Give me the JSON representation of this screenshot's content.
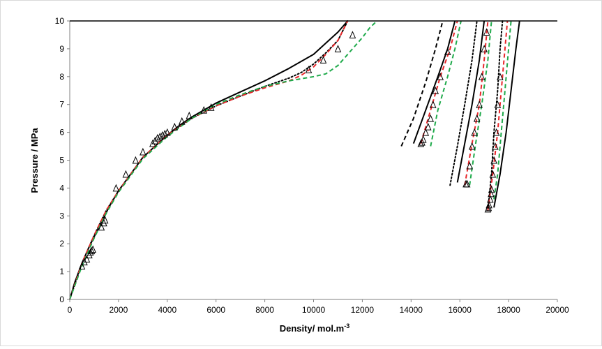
{
  "chart_data": {
    "type": "scatter",
    "title": "",
    "xlabel": "Density/ mol.m",
    "xlabel_sup": "-3",
    "ylabel": "Pressure / MPa",
    "xlim": [
      0,
      20000
    ],
    "ylim": [
      0,
      10
    ],
    "x_ticks": [
      0,
      2000,
      4000,
      6000,
      8000,
      10000,
      12000,
      14000,
      16000,
      18000,
      20000
    ],
    "y_ticks": [
      0,
      1,
      2,
      3,
      4,
      5,
      6,
      7,
      8,
      9,
      10
    ],
    "grid": false,
    "legend": "none",
    "colors": {
      "black": "#000000",
      "red": "#e8262a",
      "green": "#1faa4b",
      "axis": "#808080"
    },
    "series": [
      {
        "style": "solid",
        "color": "black",
        "points": [
          [
            0,
            0
          ],
          [
            200,
            0.6
          ],
          [
            500,
            1.3
          ],
          [
            800,
            1.9
          ],
          [
            1200,
            2.6
          ],
          [
            1600,
            3.3
          ],
          [
            2000,
            3.9
          ],
          [
            2500,
            4.5
          ],
          [
            3000,
            5.1
          ],
          [
            3500,
            5.5
          ],
          [
            4000,
            5.9
          ],
          [
            4500,
            6.25
          ],
          [
            5000,
            6.55
          ],
          [
            5500,
            6.8
          ],
          [
            6000,
            7.05
          ],
          [
            7000,
            7.45
          ],
          [
            8000,
            7.85
          ],
          [
            9000,
            8.3
          ],
          [
            10000,
            8.8
          ],
          [
            10500,
            9.2
          ],
          [
            11000,
            9.6
          ],
          [
            11400,
            10
          ]
        ]
      },
      {
        "style": "dotted",
        "color": "black",
        "points": [
          [
            0,
            0
          ],
          [
            500,
            1.3
          ],
          [
            1000,
            2.3
          ],
          [
            1500,
            3.2
          ],
          [
            2000,
            3.9
          ],
          [
            2500,
            4.5
          ],
          [
            3000,
            5.1
          ],
          [
            4000,
            5.9
          ],
          [
            5000,
            6.5
          ],
          [
            6000,
            6.95
          ],
          [
            7000,
            7.3
          ],
          [
            8000,
            7.65
          ],
          [
            9000,
            7.95
          ],
          [
            9500,
            8.15
          ],
          [
            10000,
            8.45
          ],
          [
            10500,
            8.85
          ],
          [
            11000,
            9.3
          ],
          [
            11400,
            10
          ]
        ]
      },
      {
        "style": "dashed",
        "color": "red",
        "points": [
          [
            0,
            0
          ],
          [
            500,
            1.3
          ],
          [
            1000,
            2.3
          ],
          [
            1500,
            3.2
          ],
          [
            2000,
            3.9
          ],
          [
            2500,
            4.5
          ],
          [
            3000,
            5.1
          ],
          [
            4000,
            5.9
          ],
          [
            5000,
            6.5
          ],
          [
            6000,
            6.95
          ],
          [
            7000,
            7.3
          ],
          [
            8000,
            7.6
          ],
          [
            9000,
            7.85
          ],
          [
            9500,
            8.05
          ],
          [
            10000,
            8.35
          ],
          [
            10500,
            8.8
          ],
          [
            11000,
            9.3
          ],
          [
            11400,
            10
          ]
        ]
      },
      {
        "style": "dashed",
        "color": "green",
        "points": [
          [
            0,
            0
          ],
          [
            500,
            1.2
          ],
          [
            1000,
            2.2
          ],
          [
            1500,
            3.1
          ],
          [
            2000,
            3.85
          ],
          [
            2500,
            4.45
          ],
          [
            3000,
            5.05
          ],
          [
            4000,
            5.85
          ],
          [
            5000,
            6.5
          ],
          [
            6000,
            7.0
          ],
          [
            7000,
            7.35
          ],
          [
            8000,
            7.65
          ],
          [
            9000,
            7.85
          ],
          [
            10000,
            8.0
          ],
          [
            10500,
            8.1
          ],
          [
            11000,
            8.4
          ],
          [
            11500,
            8.9
          ],
          [
            12000,
            9.4
          ],
          [
            12300,
            9.75
          ],
          [
            12600,
            10
          ]
        ]
      },
      {
        "style": "dashed",
        "color": "black",
        "points": [
          [
            13600,
            5.5
          ],
          [
            14100,
            6.5
          ],
          [
            14600,
            7.8
          ],
          [
            15000,
            9
          ],
          [
            15300,
            10
          ]
        ]
      },
      {
        "style": "solid",
        "color": "black",
        "points": [
          [
            14100,
            5.6
          ],
          [
            14600,
            6.8
          ],
          [
            15100,
            8
          ],
          [
            15500,
            9
          ],
          [
            15800,
            10
          ]
        ]
      },
      {
        "style": "dashed",
        "color": "red",
        "points": [
          [
            14400,
            5.6
          ],
          [
            14800,
            6.8
          ],
          [
            15200,
            8
          ],
          [
            15600,
            9
          ],
          [
            15900,
            10
          ]
        ]
      },
      {
        "style": "dashed",
        "color": "green",
        "points": [
          [
            14800,
            5.5
          ],
          [
            15100,
            6.8
          ],
          [
            15500,
            8
          ],
          [
            15800,
            9
          ],
          [
            16050,
            10
          ]
        ]
      },
      {
        "style": "dotted",
        "color": "black",
        "points": [
          [
            15600,
            4.1
          ],
          [
            15900,
            5.5
          ],
          [
            16200,
            7
          ],
          [
            16500,
            8.6
          ],
          [
            16700,
            10
          ]
        ]
      },
      {
        "style": "solid",
        "color": "black",
        "points": [
          [
            15900,
            4.2
          ],
          [
            16200,
            5.6
          ],
          [
            16500,
            7
          ],
          [
            16800,
            8.6
          ],
          [
            17000,
            10
          ]
        ]
      },
      {
        "style": "dashed",
        "color": "red",
        "points": [
          [
            16200,
            4.1
          ],
          [
            16500,
            5.6
          ],
          [
            16800,
            7
          ],
          [
            17000,
            8.6
          ],
          [
            17150,
            10
          ]
        ]
      },
      {
        "style": "dashed",
        "color": "green",
        "points": [
          [
            16400,
            4.1
          ],
          [
            16650,
            5.6
          ],
          [
            16900,
            7
          ],
          [
            17150,
            8.6
          ],
          [
            17300,
            10
          ]
        ]
      },
      {
        "style": "dotted",
        "color": "black",
        "points": [
          [
            17150,
            3.2
          ],
          [
            17300,
            4.5
          ],
          [
            17400,
            6
          ],
          [
            17550,
            7.5
          ],
          [
            17650,
            9
          ],
          [
            17750,
            10
          ]
        ]
      },
      {
        "style": "dashed",
        "color": "red",
        "points": [
          [
            17150,
            3.2
          ],
          [
            17350,
            4.5
          ],
          [
            17550,
            6
          ],
          [
            17700,
            7.5
          ],
          [
            17850,
            9
          ],
          [
            17950,
            10
          ]
        ]
      },
      {
        "style": "dashed",
        "color": "green",
        "points": [
          [
            17400,
            3.6
          ],
          [
            17550,
            4.5
          ],
          [
            17700,
            6
          ],
          [
            17850,
            7.5
          ],
          [
            18000,
            9
          ],
          [
            18100,
            10
          ]
        ]
      },
      {
        "style": "solid",
        "color": "black",
        "points": [
          [
            17400,
            3.3
          ],
          [
            17650,
            4.5
          ],
          [
            17900,
            6
          ],
          [
            18100,
            7.5
          ],
          [
            18300,
            9
          ],
          [
            18450,
            10
          ]
        ]
      }
    ],
    "markers": [
      [
        500,
        1.2
      ],
      [
        600,
        1.35
      ],
      [
        700,
        1.45
      ],
      [
        800,
        1.6
      ],
      [
        850,
        1.7
      ],
      [
        900,
        1.75
      ],
      [
        950,
        1.8
      ],
      [
        1300,
        2.6
      ],
      [
        1400,
        2.75
      ],
      [
        1450,
        2.85
      ],
      [
        1900,
        4.0
      ],
      [
        2300,
        4.5
      ],
      [
        2700,
        5.0
      ],
      [
        3000,
        5.3
      ],
      [
        3400,
        5.6
      ],
      [
        3500,
        5.7
      ],
      [
        3600,
        5.8
      ],
      [
        3700,
        5.85
      ],
      [
        3800,
        5.9
      ],
      [
        3900,
        5.95
      ],
      [
        4000,
        6.0
      ],
      [
        4300,
        6.2
      ],
      [
        4600,
        6.4
      ],
      [
        4900,
        6.6
      ],
      [
        5500,
        6.8
      ],
      [
        5800,
        6.9
      ],
      [
        9800,
        8.25
      ],
      [
        10400,
        8.6
      ],
      [
        11000,
        9.0
      ],
      [
        11600,
        9.5
      ],
      [
        14400,
        5.6
      ],
      [
        14450,
        5.65
      ],
      [
        14500,
        5.75
      ],
      [
        14600,
        6.0
      ],
      [
        14700,
        6.2
      ],
      [
        14800,
        6.5
      ],
      [
        14900,
        7.0
      ],
      [
        15000,
        7.5
      ],
      [
        15200,
        8.0
      ],
      [
        15500,
        8.9
      ],
      [
        16250,
        4.15
      ],
      [
        16300,
        4.15
      ],
      [
        16400,
        4.8
      ],
      [
        16500,
        5.5
      ],
      [
        16600,
        6.0
      ],
      [
        16700,
        6.5
      ],
      [
        16800,
        7.0
      ],
      [
        16900,
        8.0
      ],
      [
        17000,
        9.0
      ],
      [
        17100,
        9.6
      ],
      [
        17150,
        3.25
      ],
      [
        17180,
        3.3
      ],
      [
        17200,
        3.4
      ],
      [
        17250,
        3.6
      ],
      [
        17280,
        3.8
      ],
      [
        17300,
        3.95
      ],
      [
        17350,
        4.5
      ],
      [
        17400,
        5.0
      ],
      [
        17450,
        5.5
      ],
      [
        17500,
        6.0
      ],
      [
        17550,
        7.0
      ],
      [
        17650,
        8.0
      ]
    ]
  }
}
